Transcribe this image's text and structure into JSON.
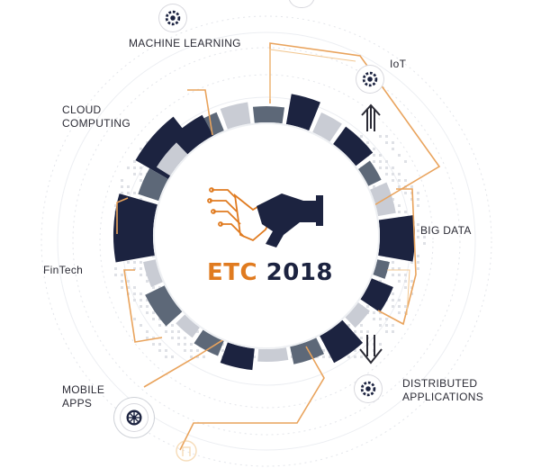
{
  "center": {
    "title_part1": "ETC",
    "title_part2": "2018"
  },
  "labels": {
    "machine_learning": "MACHINE LEARNING",
    "iot": "IoT",
    "cloud_line1": "CLOUD",
    "cloud_line2": "COMPUTING",
    "big_data": "BIG DATA",
    "fintech": "FinTech",
    "mobile_line1": "MOBILE",
    "mobile_line2": "APPS",
    "distributed_line1": "DISTRIBUTED",
    "distributed_line2": "APPLICATIONS"
  },
  "icons": [
    "gear-icon",
    "handshake-icon",
    "arrow-up-icon",
    "arrow-down-icon",
    "wheel-icon"
  ],
  "colors": {
    "navy": "#1c2340",
    "orange": "#e07b20",
    "grey": "#5d6878",
    "light": "#c9ccd4"
  }
}
